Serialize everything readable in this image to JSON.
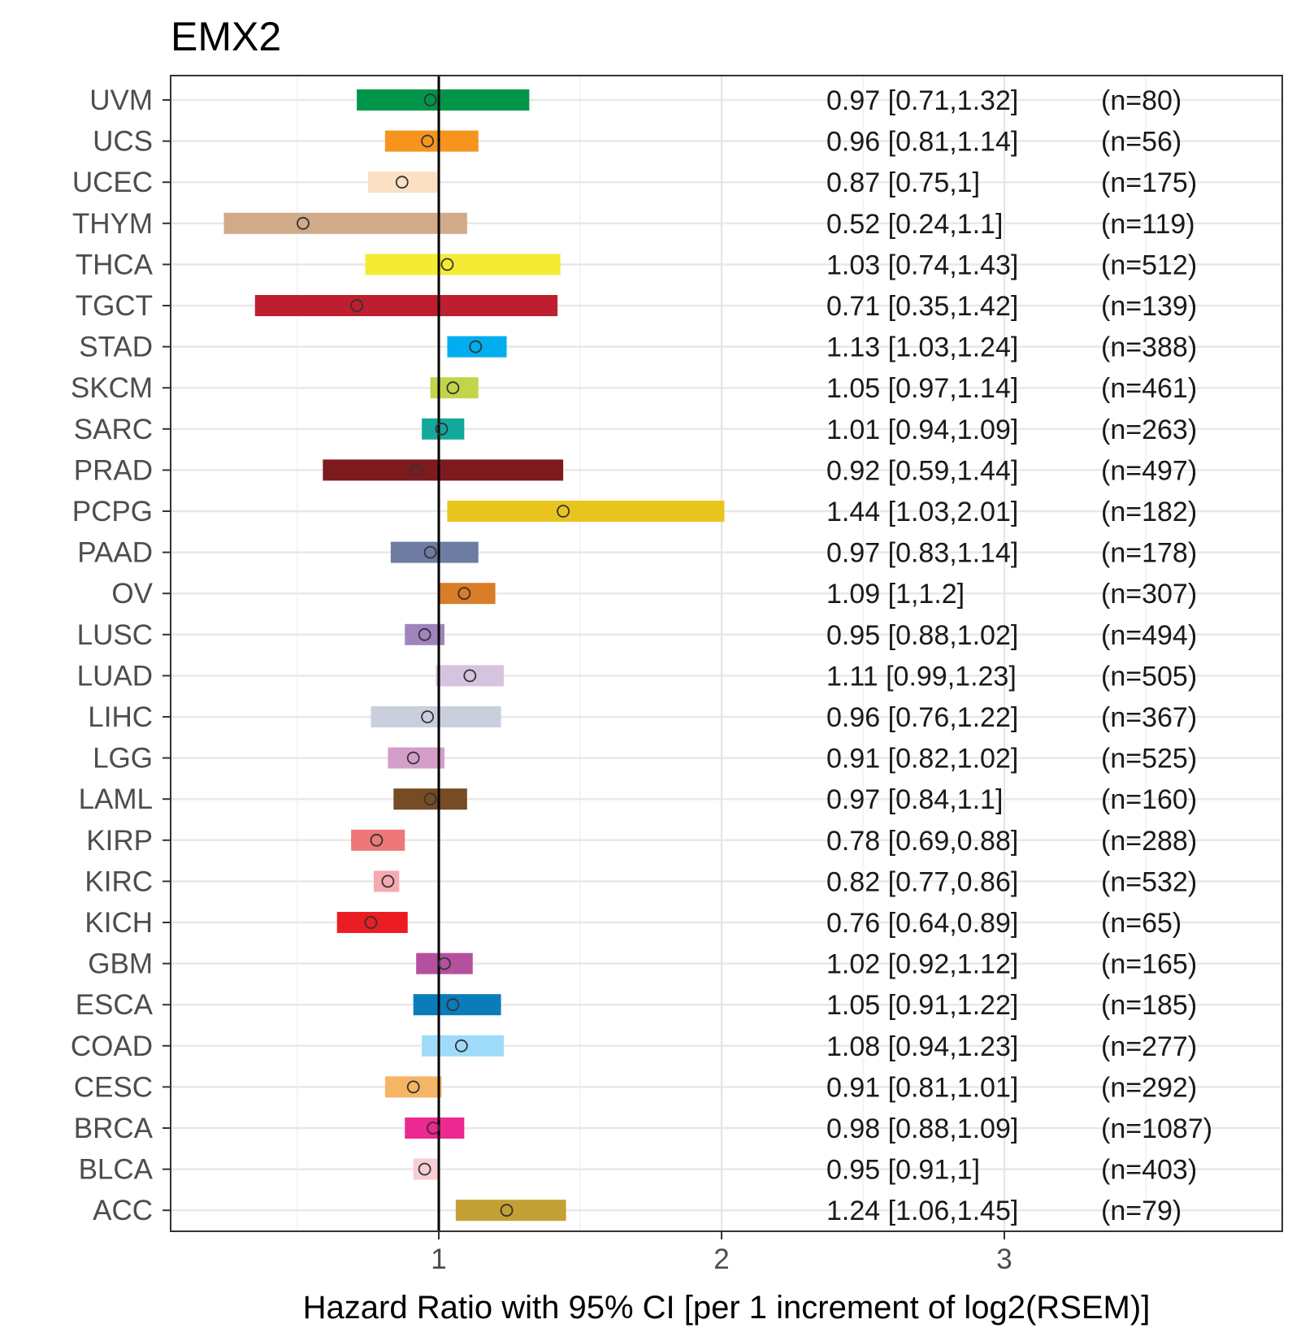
{
  "chart_data": {
    "type": "forest",
    "title": "EMX2",
    "xlabel": "Hazard Ratio with 95% CI [per 1 increment of log2(RSEM)]",
    "ylabel": "",
    "xlim": [
      0.05,
      3.9
    ],
    "xticks": [
      1,
      2,
      3
    ],
    "reference_line": 1,
    "grid": true,
    "rows": [
      {
        "category": "UVM",
        "hr": 0.97,
        "lower": 0.71,
        "upper": 1.32,
        "ci_text": "0.97 [0.71,1.32]",
        "n_text": "(n=80)",
        "color": "#00964a"
      },
      {
        "category": "UCS",
        "hr": 0.96,
        "lower": 0.81,
        "upper": 1.14,
        "ci_text": "0.96 [0.81,1.14]",
        "n_text": "(n=56)",
        "color": "#f7941e"
      },
      {
        "category": "UCEC",
        "hr": 0.87,
        "lower": 0.75,
        "upper": 1,
        "ci_text": "0.87 [0.75,1]",
        "n_text": "(n=175)",
        "color": "#fbe0c4"
      },
      {
        "category": "THYM",
        "hr": 0.52,
        "lower": 0.24,
        "upper": 1.1,
        "ci_text": "0.52 [0.24,1.1]",
        "n_text": "(n=119)",
        "color": "#d0aa89"
      },
      {
        "category": "THCA",
        "hr": 1.03,
        "lower": 0.74,
        "upper": 1.43,
        "ci_text": "1.03 [0.74,1.43]",
        "n_text": "(n=512)",
        "color": "#f5eb34"
      },
      {
        "category": "TGCT",
        "hr": 0.71,
        "lower": 0.35,
        "upper": 1.42,
        "ci_text": "0.71 [0.35,1.42]",
        "n_text": "(n=139)",
        "color": "#be1e2d"
      },
      {
        "category": "STAD",
        "hr": 1.13,
        "lower": 1.03,
        "upper": 1.24,
        "ci_text": "1.13 [1.03,1.24]",
        "n_text": "(n=388)",
        "color": "#00aeef"
      },
      {
        "category": "SKCM",
        "hr": 1.05,
        "lower": 0.97,
        "upper": 1.14,
        "ci_text": "1.05 [0.97,1.14]",
        "n_text": "(n=461)",
        "color": "#c2d54a"
      },
      {
        "category": "SARC",
        "hr": 1.01,
        "lower": 0.94,
        "upper": 1.09,
        "ci_text": "1.01 [0.94,1.09]",
        "n_text": "(n=263)",
        "color": "#12a99b"
      },
      {
        "category": "PRAD",
        "hr": 0.92,
        "lower": 0.59,
        "upper": 1.44,
        "ci_text": "0.92 [0.59,1.44]",
        "n_text": "(n=497)",
        "color": "#7d1a1d"
      },
      {
        "category": "PCPG",
        "hr": 1.44,
        "lower": 1.03,
        "upper": 2.01,
        "ci_text": "1.44 [1.03,2.01]",
        "n_text": "(n=182)",
        "color": "#e8c51e"
      },
      {
        "category": "PAAD",
        "hr": 0.97,
        "lower": 0.83,
        "upper": 1.14,
        "ci_text": "0.97 [0.83,1.14]",
        "n_text": "(n=178)",
        "color": "#6e7ba2"
      },
      {
        "category": "OV",
        "hr": 1.09,
        "lower": 1,
        "upper": 1.2,
        "ci_text": "1.09 [1,1.2]",
        "n_text": "(n=307)",
        "color": "#d97d27"
      },
      {
        "category": "LUSC",
        "hr": 0.95,
        "lower": 0.88,
        "upper": 1.02,
        "ci_text": "0.95 [0.88,1.02]",
        "n_text": "(n=494)",
        "color": "#a084bd"
      },
      {
        "category": "LUAD",
        "hr": 1.11,
        "lower": 0.99,
        "upper": 1.23,
        "ci_text": "1.11 [0.99,1.23]",
        "n_text": "(n=505)",
        "color": "#d5c3e0"
      },
      {
        "category": "LIHC",
        "hr": 0.96,
        "lower": 0.76,
        "upper": 1.22,
        "ci_text": "0.96 [0.76,1.22]",
        "n_text": "(n=367)",
        "color": "#cacfdd"
      },
      {
        "category": "LGG",
        "hr": 0.91,
        "lower": 0.82,
        "upper": 1.02,
        "ci_text": "0.91 [0.82,1.02]",
        "n_text": "(n=525)",
        "color": "#d59ec9"
      },
      {
        "category": "LAML",
        "hr": 0.97,
        "lower": 0.84,
        "upper": 1.1,
        "ci_text": "0.97 [0.84,1.1]",
        "n_text": "(n=160)",
        "color": "#754c24"
      },
      {
        "category": "KIRP",
        "hr": 0.78,
        "lower": 0.69,
        "upper": 0.88,
        "ci_text": "0.78 [0.69,0.88]",
        "n_text": "(n=288)",
        "color": "#ee7779"
      },
      {
        "category": "KIRC",
        "hr": 0.82,
        "lower": 0.77,
        "upper": 0.86,
        "ci_text": "0.82 [0.77,0.86]",
        "n_text": "(n=532)",
        "color": "#f6a9b0"
      },
      {
        "category": "KICH",
        "hr": 0.76,
        "lower": 0.64,
        "upper": 0.89,
        "ci_text": "0.76 [0.64,0.89]",
        "n_text": "(n=65)",
        "color": "#ec1c24"
      },
      {
        "category": "GBM",
        "hr": 1.02,
        "lower": 0.92,
        "upper": 1.12,
        "ci_text": "1.02 [0.92,1.12]",
        "n_text": "(n=165)",
        "color": "#b5509f"
      },
      {
        "category": "ESCA",
        "hr": 1.05,
        "lower": 0.91,
        "upper": 1.22,
        "ci_text": "1.05 [0.91,1.22]",
        "n_text": "(n=185)",
        "color": "#0a7cba"
      },
      {
        "category": "COAD",
        "hr": 1.08,
        "lower": 0.94,
        "upper": 1.23,
        "ci_text": "1.08 [0.94,1.23]",
        "n_text": "(n=277)",
        "color": "#9edbf8"
      },
      {
        "category": "CESC",
        "hr": 0.91,
        "lower": 0.81,
        "upper": 1.01,
        "ci_text": "0.91 [0.81,1.01]",
        "n_text": "(n=292)",
        "color": "#f5b565"
      },
      {
        "category": "BRCA",
        "hr": 0.98,
        "lower": 0.88,
        "upper": 1.09,
        "ci_text": "0.98 [0.88,1.09]",
        "n_text": "(n=1087)",
        "color": "#ec2891"
      },
      {
        "category": "BLCA",
        "hr": 0.95,
        "lower": 0.91,
        "upper": 1,
        "ci_text": "0.95 [0.91,1]",
        "n_text": "(n=403)",
        "color": "#f8cdd4"
      },
      {
        "category": "ACC",
        "hr": 1.24,
        "lower": 1.06,
        "upper": 1.45,
        "ci_text": "1.24 [1.06,1.45]",
        "n_text": "(n=79)",
        "color": "#c2a033"
      }
    ]
  }
}
